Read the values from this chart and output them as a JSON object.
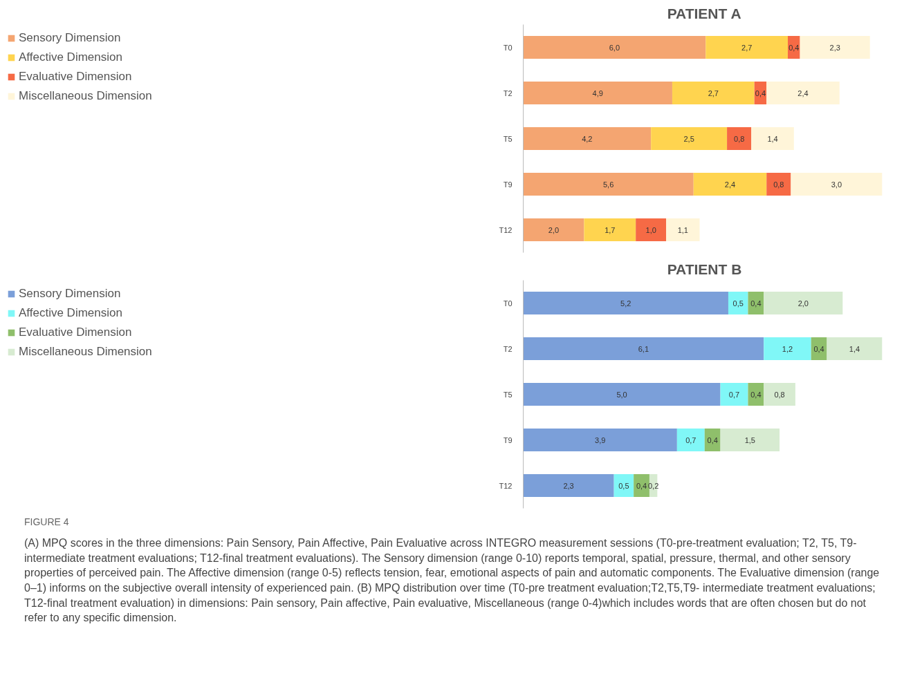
{
  "chart_data": [
    {
      "type": "bar",
      "orientation": "horizontal",
      "stacked": true,
      "title": "PATIENT A",
      "categories": [
        "T0",
        "T2",
        "T5",
        "T9",
        "T12"
      ],
      "tick_labels": "y",
      "grid": false,
      "legend": "left",
      "series": [
        {
          "name": "Sensory Dimension",
          "color": "#f4a571",
          "values": [
            6.0,
            4.9,
            4.2,
            5.6,
            2.0
          ],
          "value_labels": [
            "6,0",
            "4,9",
            "4,2",
            "5,6",
            "2,0"
          ]
        },
        {
          "name": "Affective Dimension",
          "color": "#ffd44f",
          "values": [
            2.7,
            2.7,
            2.5,
            2.4,
            1.7
          ],
          "value_labels": [
            "2,7",
            "2,7",
            "2,5",
            "2,4",
            "1,7"
          ]
        },
        {
          "name": "Evaluative Dimension",
          "color": "#f66a45",
          "values": [
            0.4,
            0.4,
            0.8,
            0.8,
            1.0
          ],
          "value_labels": [
            "0,4",
            "0,4",
            "0,8",
            "0,8",
            "1,0"
          ]
        },
        {
          "name": "Miscellaneous Dimension",
          "color": "#fff5d9",
          "values": [
            2.3,
            2.4,
            1.4,
            3.0,
            1.1
          ],
          "value_labels": [
            "2,3",
            "2,4",
            "1,4",
            "3,0",
            "1,1"
          ]
        }
      ]
    },
    {
      "type": "bar",
      "orientation": "horizontal",
      "stacked": true,
      "title": "PATIENT B",
      "categories": [
        "T0",
        "T2",
        "T5",
        "T9",
        "T12"
      ],
      "tick_labels": "y",
      "grid": false,
      "legend": "left",
      "series": [
        {
          "name": "Sensory Dimension",
          "color": "#7b9fd9",
          "values": [
            5.2,
            6.1,
            5.0,
            3.9,
            2.3
          ],
          "value_labels": [
            "5,2",
            "6,1",
            "5,0",
            "3,9",
            "2,3"
          ]
        },
        {
          "name": "Affective Dimension",
          "color": "#80f7f7",
          "values": [
            0.5,
            1.2,
            0.7,
            0.7,
            0.5
          ],
          "value_labels": [
            "0,5",
            "1,2",
            "0,7",
            "0,7",
            "0,5"
          ]
        },
        {
          "name": "Evaluative Dimension",
          "color": "#8fbf6b",
          "values": [
            0.4,
            0.4,
            0.4,
            0.4,
            0.4
          ],
          "value_labels": [
            "0,4",
            "0,4",
            "0,4",
            "0,4",
            "0,4"
          ]
        },
        {
          "name": "Miscellaneous Dimension",
          "color": "#d7ebd1",
          "values": [
            2.0,
            1.4,
            0.8,
            1.5,
            0.2
          ],
          "value_labels": [
            "2,0",
            "1,4",
            "0,8",
            "1,5",
            "0,2"
          ]
        }
      ],
      "annotations": [
        "FIGURE 4",
        "(A) MPQ scores in the three dimensions: Pain Sensory, Pain Affective, Pain Evaluative across INTEGRO measurement sessions (T0-pre-treatment evaluation; T2, T5, T9-intermediate treatment evaluations; T12-final treatment evaluations). The Sensory dimension (range 0-10) reports temporal, spatial, pressure, thermal, and other sensory properties of perceived pain. The Affective dimension (range 0-5) reflects tension, fear, emotional aspects of pain and automatic components. The Evaluative dimension (range 0–1) informs on the subjective overall intensity of experienced pain. (B) MPQ distribution over time (T0-pre treatment evaluation;T2,T5,T9- intermediate treatment evaluations; T12-final treatment evaluation) in dimensions: Pain sensory, Pain affective, Pain evaluative, Miscellaneous (range 0-4)which includes words that are often chosen but do not refer to any specific dimension."
      ]
    }
  ]
}
